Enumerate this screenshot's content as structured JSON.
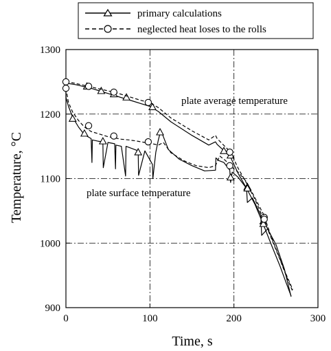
{
  "chart_data": {
    "type": "line",
    "xlabel": "Time, s",
    "ylabel": "Temperature, °C",
    "xlim": [
      0,
      300
    ],
    "ylim": [
      900,
      1300
    ],
    "x_ticks": [
      "0",
      "100",
      "200",
      "300"
    ],
    "y_ticks": [
      "900",
      "1000",
      "1100",
      "1200",
      "1300"
    ],
    "grid": true,
    "legend_position": "top",
    "legend": [
      "primary calculations",
      "neglected heat loses to the rolls"
    ],
    "annotations": [
      "plate average temperature",
      "plate surface temperature"
    ],
    "series": [
      {
        "name": "primary calculations",
        "group": "plate average temperature",
        "style": "solid",
        "marker": "triangle",
        "x": [
          0,
          10,
          20,
          30,
          40,
          50,
          60,
          70,
          80,
          90,
          100,
          110,
          125,
          150,
          170,
          178,
          180,
          190,
          196,
          205,
          215,
          225,
          235,
          245,
          255,
          262,
          268
        ],
        "y": [
          1248,
          1246,
          1243,
          1240,
          1236,
          1232,
          1228,
          1224,
          1220,
          1216,
          1212,
          1204,
          1188,
          1167,
          1152,
          1157,
          1153,
          1141,
          1133,
          1108,
          1085,
          1060,
          1029,
          996,
          964,
          939,
          918
        ],
        "markers_x": [
          25,
          42,
          57,
          72,
          103,
          188,
          196,
          216,
          235
        ],
        "markers_y": [
          1243,
          1236,
          1231,
          1226,
          1211,
          1143,
          1136,
          1087,
          1034
        ]
      },
      {
        "name": "neglected heat loses to the rolls",
        "group": "plate average temperature",
        "style": "dashed",
        "marker": "circle",
        "x": [
          0,
          10,
          20,
          30,
          40,
          50,
          60,
          70,
          80,
          90,
          100,
          110,
          125,
          150,
          170,
          178,
          180,
          190,
          196,
          205,
          215,
          225,
          235,
          245,
          255,
          262,
          270
        ],
        "y": [
          1250,
          1248,
          1245,
          1242,
          1239,
          1236,
          1233,
          1229,
          1225,
          1221,
          1218,
          1210,
          1194,
          1174,
          1160,
          1167,
          1162,
          1149,
          1141,
          1116,
          1093,
          1068,
          1038,
          1006,
          974,
          950,
          925
        ],
        "markers_x": [
          0,
          27,
          57,
          98,
          195,
          236
        ],
        "markers_y": [
          1250,
          1243,
          1234,
          1218,
          1141,
          1040
        ]
      },
      {
        "name": "primary calculations",
        "group": "plate surface temperature",
        "style": "solid",
        "marker": "triangle",
        "x": [
          0,
          0,
          3,
          8,
          15,
          22,
          30,
          31,
          31.5,
          38,
          44,
          44.5,
          50,
          58,
          59,
          59.5,
          66,
          71,
          71.5,
          80,
          86,
          86.5,
          94,
          103,
          103.5,
          107,
          110,
          113,
          122,
          135,
          150,
          165,
          178,
          178.5,
          182,
          188,
          195,
          196,
          198,
          205,
          215,
          216,
          222,
          232,
          233,
          240,
          250,
          260,
          268
        ],
        "y": [
          1236,
          1226,
          1212,
          1195,
          1180,
          1168,
          1162,
          1125,
          1160,
          1158,
          1157,
          1117,
          1156,
          1154,
          1115,
          1152,
          1150,
          1104,
          1150,
          1146,
          1143,
          1105,
          1143,
          1122,
          1100,
          1141,
          1160,
          1175,
          1145,
          1130,
          1120,
          1112,
          1113,
          1132,
          1128,
          1125,
          1113,
          1094,
          1110,
          1102,
          1085,
          1063,
          1070,
          1043,
          1012,
          1022,
          998,
          960,
          917
        ],
        "markers_x": [
          8,
          22,
          44,
          86,
          112,
          196,
          216,
          235
        ],
        "markers_y": [
          1193,
          1170,
          1158,
          1141,
          1172,
          1102,
          1085,
          1030
        ]
      },
      {
        "name": "neglected heat loses to the rolls",
        "group": "plate surface temperature",
        "style": "dashed",
        "marker": "circle",
        "x": [
          0,
          3,
          8,
          15,
          22,
          30,
          40,
          50,
          58,
          66,
          75,
          85,
          94,
          103,
          110,
          116,
          125,
          140,
          155,
          170,
          178,
          183,
          190,
          197,
          205,
          215,
          225,
          235,
          245,
          255,
          262,
          270
        ],
        "y": [
          1240,
          1218,
          1203,
          1190,
          1180,
          1173,
          1169,
          1165,
          1163,
          1161,
          1160,
          1158,
          1156,
          1154,
          1152,
          1156,
          1140,
          1128,
          1120,
          1117,
          1120,
          1135,
          1128,
          1118,
          1110,
          1095,
          1070,
          1045,
          1008,
          975,
          952,
          928
        ],
        "markers_x": [
          0,
          27,
          57,
          98,
          195,
          236
        ],
        "markers_y": [
          1240,
          1182,
          1166,
          1157,
          1120,
          1037
        ]
      }
    ]
  }
}
